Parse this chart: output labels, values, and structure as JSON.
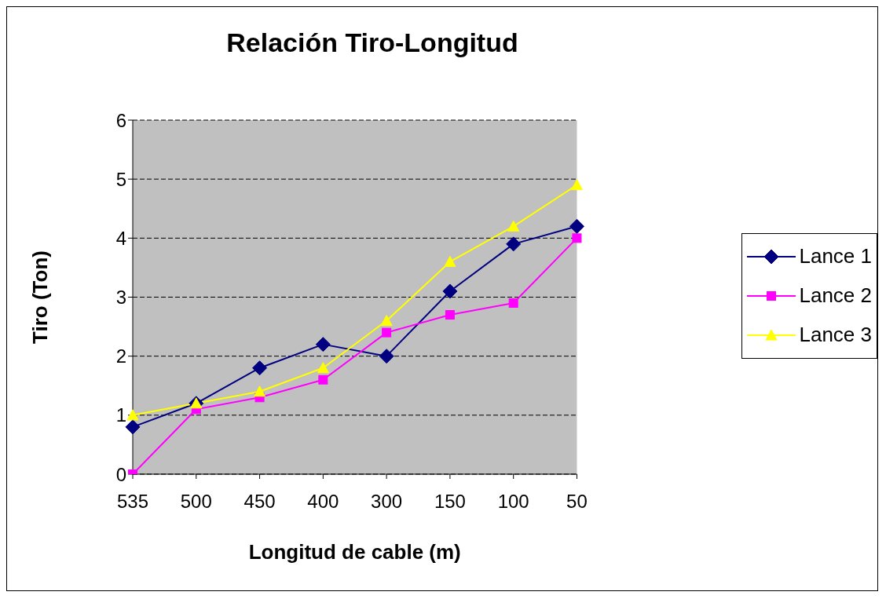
{
  "chart_data": {
    "type": "line",
    "title": "Relación Tiro-Longitud",
    "xlabel": "Longitud de cable (m)",
    "ylabel": "Tiro (Ton)",
    "categories": [
      "535",
      "500",
      "450",
      "400",
      "300",
      "150",
      "100",
      "50"
    ],
    "series": [
      {
        "name": "Lance 1",
        "color": "#000080",
        "marker": "diamond",
        "values": [
          0.8,
          1.2,
          1.8,
          2.2,
          2.0,
          3.1,
          3.9,
          4.2
        ]
      },
      {
        "name": "Lance 2",
        "color": "#ff00ff",
        "marker": "square",
        "values": [
          0.0,
          1.1,
          1.3,
          1.6,
          2.4,
          2.7,
          2.9,
          4.0
        ]
      },
      {
        "name": "Lance 3",
        "color": "#ffff00",
        "marker": "triangle",
        "values": [
          1.0,
          1.2,
          1.4,
          1.8,
          2.6,
          3.6,
          4.2,
          4.9
        ]
      }
    ],
    "ylim": [
      0,
      6
    ],
    "yticks": [
      0,
      1,
      2,
      3,
      4,
      5,
      6
    ],
    "grid": "y",
    "legend": "right",
    "line_style": "solid"
  }
}
